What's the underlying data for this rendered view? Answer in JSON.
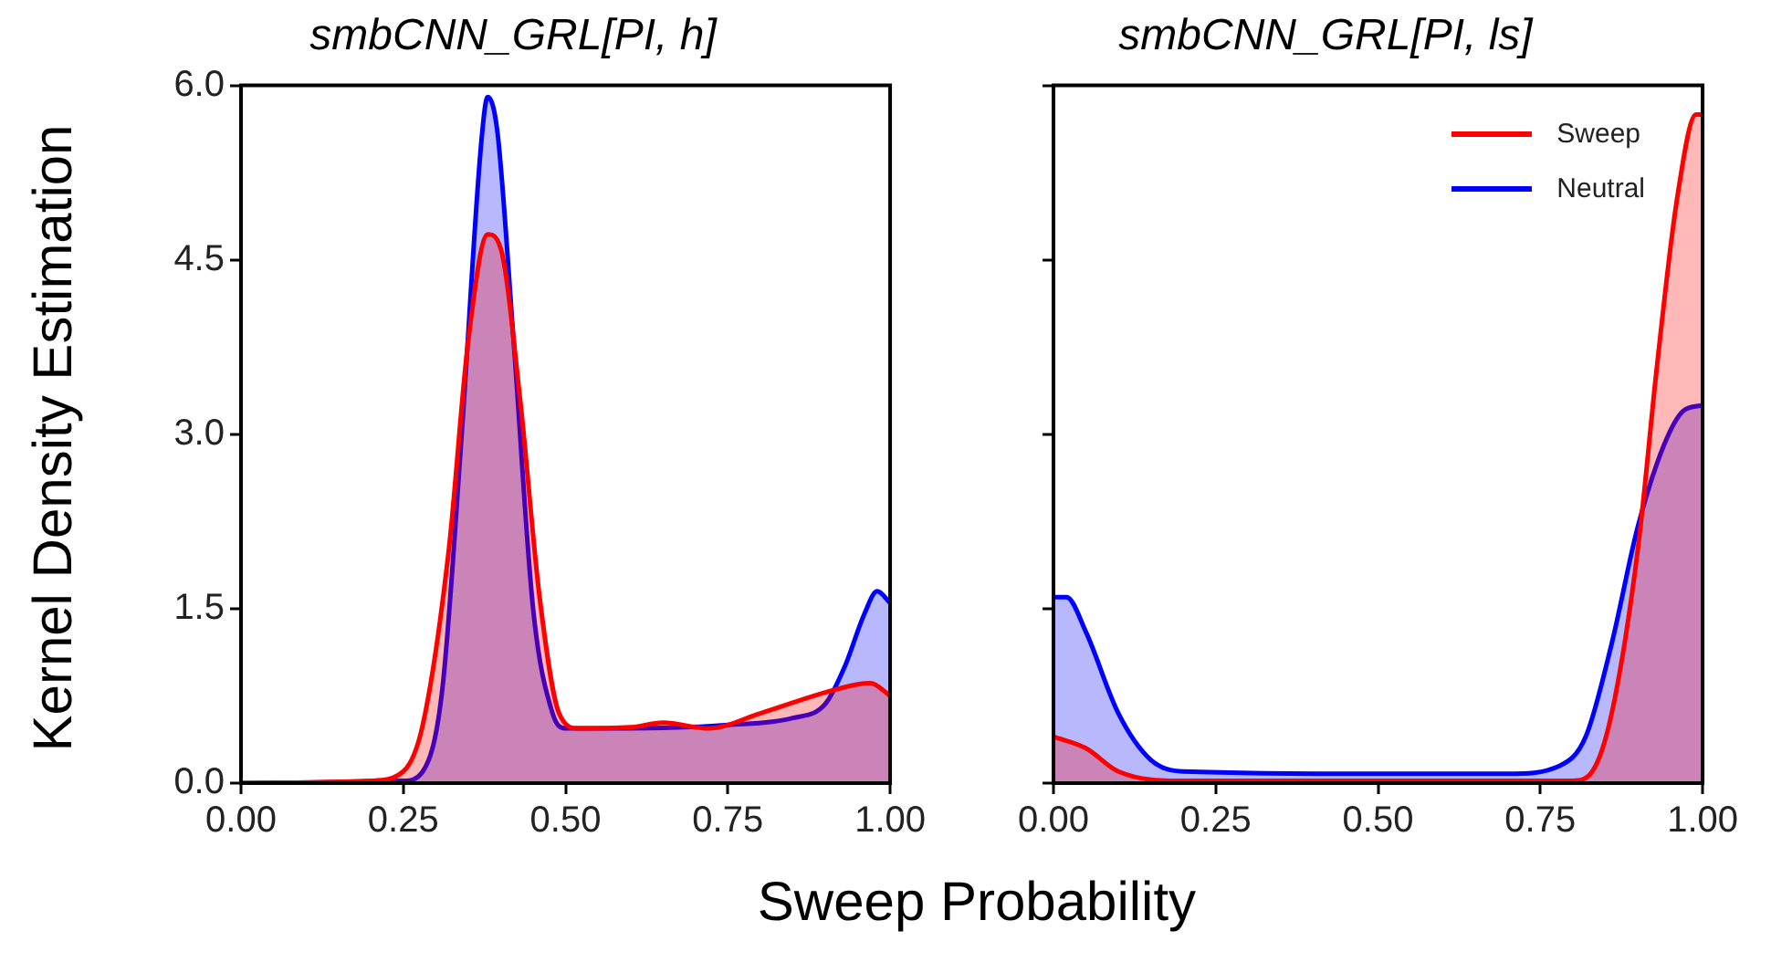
{
  "chart_data": [
    {
      "type": "area",
      "title": "smbCNN_GRL[PI, h]",
      "ylabel": "Kernel Density Estimation",
      "xlabel": "Sweep Probability",
      "xlim": [
        0,
        1
      ],
      "ylim": [
        0,
        6
      ],
      "xticks": [
        {
          "value": 0,
          "label": "0.00"
        },
        {
          "value": 0.25,
          "label": "0.25"
        },
        {
          "value": 0.5,
          "label": "0.50"
        },
        {
          "value": 0.75,
          "label": "0.75"
        },
        {
          "value": 1,
          "label": "1.00"
        }
      ],
      "yticks": [
        {
          "value": 0,
          "label": "0.0"
        },
        {
          "value": 1.5,
          "label": "1.5"
        },
        {
          "value": 3,
          "label": "3.0"
        },
        {
          "value": 4.5,
          "label": "4.5"
        },
        {
          "value": 6,
          "label": "6.0"
        }
      ],
      "grid": false,
      "legend": false,
      "series": [
        {
          "color": "#ff0000",
          "x": [
            0,
            0.2,
            0.25,
            0.28,
            0.32,
            0.35,
            0.38,
            0.4,
            0.43,
            0.46,
            0.49,
            0.52,
            0.6,
            0.65,
            0.72,
            0.8,
            0.9,
            0.95,
            0.97,
            1.0
          ],
          "values": [
            0,
            0.02,
            0.1,
            0.5,
            2.0,
            3.8,
            4.72,
            4.6,
            3.3,
            1.6,
            0.6,
            0.47,
            0.48,
            0.52,
            0.47,
            0.6,
            0.78,
            0.85,
            0.86,
            0.75
          ]
        },
        {
          "color": "#0000ff",
          "x": [
            0,
            0.25,
            0.28,
            0.31,
            0.34,
            0.37,
            0.38,
            0.395,
            0.42,
            0.45,
            0.48,
            0.5,
            0.6,
            0.75,
            0.85,
            0.9,
            0.93,
            0.96,
            0.98,
            1.0
          ],
          "values": [
            0,
            0.02,
            0.1,
            0.8,
            3.0,
            5.5,
            5.9,
            5.6,
            3.8,
            1.5,
            0.6,
            0.47,
            0.47,
            0.5,
            0.56,
            0.68,
            1.0,
            1.45,
            1.65,
            1.55
          ]
        }
      ]
    },
    {
      "type": "area",
      "title": "smbCNN_GRL[PI, ls]",
      "xlim": [
        0,
        1
      ],
      "ylim": [
        0,
        6
      ],
      "xticks": [
        {
          "value": 0,
          "label": "0.00"
        },
        {
          "value": 0.25,
          "label": "0.25"
        },
        {
          "value": 0.5,
          "label": "0.50"
        },
        {
          "value": 0.75,
          "label": "0.75"
        },
        {
          "value": 1,
          "label": "1.00"
        }
      ],
      "yticks": [
        {
          "value": 0,
          "label": null
        },
        {
          "value": 1.5,
          "label": null
        },
        {
          "value": 3,
          "label": null
        },
        {
          "value": 4.5,
          "label": null
        },
        {
          "value": 6,
          "label": null
        }
      ],
      "tick_labels": "x",
      "grid": false,
      "legend": "top right",
      "series": [
        {
          "name": "Sweep",
          "color": "#ff0000",
          "x": [
            0,
            0.05,
            0.1,
            0.2,
            0.8,
            0.83,
            0.86,
            0.9,
            0.93,
            0.96,
            0.99,
            1.0
          ],
          "values": [
            0.4,
            0.3,
            0.1,
            0.02,
            0.02,
            0.1,
            0.6,
            2.0,
            3.6,
            5.0,
            5.75,
            5.75
          ]
        },
        {
          "name": "Neutral",
          "color": "#0000ff",
          "x": [
            0,
            0.02,
            0.05,
            0.1,
            0.15,
            0.2,
            0.5,
            0.7,
            0.78,
            0.82,
            0.86,
            0.9,
            0.94,
            0.97,
            1.0
          ],
          "values": [
            1.6,
            1.6,
            1.3,
            0.6,
            0.2,
            0.1,
            0.08,
            0.08,
            0.15,
            0.4,
            1.2,
            2.2,
            2.9,
            3.2,
            3.25
          ]
        }
      ]
    }
  ]
}
